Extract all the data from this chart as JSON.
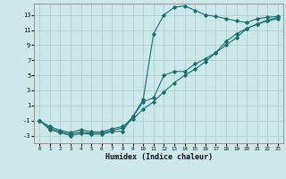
{
  "xlabel": "Humidex (Indice chaleur)",
  "bg_color": "#cce8e8",
  "grid_color": "#aacccc",
  "line_color": "#1a6e6e",
  "xlim": [
    -0.5,
    23.5
  ],
  "ylim": [
    -4,
    14.5
  ],
  "xticks": [
    0,
    1,
    2,
    3,
    4,
    5,
    6,
    7,
    8,
    9,
    10,
    11,
    12,
    13,
    14,
    15,
    16,
    17,
    18,
    19,
    20,
    21,
    22,
    23
  ],
  "yticks": [
    -3,
    -1,
    1,
    3,
    5,
    7,
    9,
    11,
    13
  ],
  "curve1_x": [
    0,
    1,
    2,
    3,
    4,
    5,
    6,
    7,
    8,
    9,
    10,
    11,
    12,
    13,
    14,
    15,
    16,
    17,
    18,
    19,
    20,
    21,
    22,
    23
  ],
  "curve1_y": [
    -1.0,
    -2.2,
    -2.6,
    -3.0,
    -2.7,
    -2.8,
    -2.8,
    -2.5,
    -2.4,
    -0.5,
    1.8,
    10.5,
    13.0,
    14.0,
    14.2,
    13.6,
    13.0,
    12.8,
    12.5,
    12.2,
    12.0,
    12.5,
    12.7,
    12.8
  ],
  "curve2_x": [
    0,
    1,
    2,
    3,
    4,
    5,
    6,
    7,
    8,
    9,
    10,
    11,
    12,
    13,
    14,
    15,
    16,
    17,
    18,
    19,
    20,
    21,
    22,
    23
  ],
  "curve2_y": [
    -1.0,
    -2.0,
    -2.5,
    -2.8,
    -2.5,
    -2.7,
    -2.7,
    -2.3,
    -2.0,
    -0.5,
    1.5,
    2.0,
    5.0,
    5.5,
    5.5,
    6.5,
    7.2,
    8.0,
    9.0,
    10.0,
    11.2,
    11.8,
    12.3,
    12.7
  ],
  "curve3_x": [
    0,
    1,
    2,
    3,
    4,
    5,
    6,
    7,
    8,
    9,
    10,
    11,
    12,
    13,
    14,
    15,
    16,
    17,
    18,
    19,
    20,
    21,
    22,
    23
  ],
  "curve3_y": [
    -1.0,
    -1.8,
    -2.3,
    -2.6,
    -2.2,
    -2.5,
    -2.5,
    -2.1,
    -1.8,
    -0.8,
    0.5,
    1.5,
    2.8,
    4.0,
    5.0,
    5.8,
    6.8,
    8.0,
    9.5,
    10.5,
    11.2,
    11.8,
    12.2,
    12.5
  ]
}
